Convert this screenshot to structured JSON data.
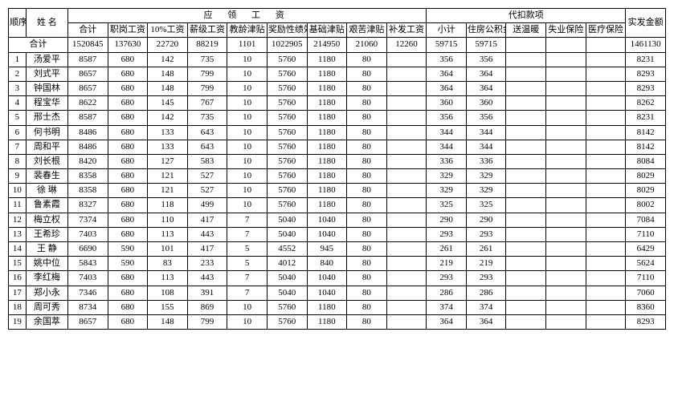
{
  "columns": {
    "seq": "顺序号",
    "name": "姓 名",
    "pay_group": "应 领 工 资",
    "deduct_group": "代扣款项",
    "net": "实发金额",
    "heji": "合计",
    "zhigang": "职岗工资",
    "pct10": "10%工资",
    "xinji": "薪级工资",
    "jiaoling": "教龄津贴",
    "jiangli": "奖励性绩效工资",
    "jichu": "基础津贴",
    "jianku": "艰苦津贴",
    "bufa": "补发工资",
    "xiaoji": "小计",
    "gongjijin": "住房公积金",
    "songnuan": "送温暖",
    "shiyebx": "失业保险",
    "yiliaobx": "医疗保险",
    "total_label": "合计"
  },
  "totals": {
    "heji": "1520845",
    "zhigang": "137630",
    "pct10": "22720",
    "xinji": "88219",
    "jiaoling": "1101",
    "jiangli": "1022905",
    "jichu": "214950",
    "jianku": "21060",
    "bufa": "12260",
    "xiaoji": "59715",
    "gongjijin": "59715",
    "songnuan": "",
    "shiyebx": "",
    "yiliaobx": "",
    "net": "1461130"
  },
  "rows": [
    {
      "seq": "1",
      "name": "汤爱平",
      "heji": "8587",
      "zhigang": "680",
      "pct10": "142",
      "xinji": "735",
      "jiaoling": "10",
      "jiangli": "5760",
      "jichu": "1180",
      "jianku": "80",
      "bufa": "",
      "xiaoji": "356",
      "gongjijin": "356",
      "songnuan": "",
      "shiyebx": "",
      "yiliaobx": "",
      "net": "8231"
    },
    {
      "seq": "2",
      "name": "刘式平",
      "heji": "8657",
      "zhigang": "680",
      "pct10": "148",
      "xinji": "799",
      "jiaoling": "10",
      "jiangli": "5760",
      "jichu": "1180",
      "jianku": "80",
      "bufa": "",
      "xiaoji": "364",
      "gongjijin": "364",
      "songnuan": "",
      "shiyebx": "",
      "yiliaobx": "",
      "net": "8293"
    },
    {
      "seq": "3",
      "name": "钟国林",
      "heji": "8657",
      "zhigang": "680",
      "pct10": "148",
      "xinji": "799",
      "jiaoling": "10",
      "jiangli": "5760",
      "jichu": "1180",
      "jianku": "80",
      "bufa": "",
      "xiaoji": "364",
      "gongjijin": "364",
      "songnuan": "",
      "shiyebx": "",
      "yiliaobx": "",
      "net": "8293"
    },
    {
      "seq": "4",
      "name": "程宝华",
      "heji": "8622",
      "zhigang": "680",
      "pct10": "145",
      "xinji": "767",
      "jiaoling": "10",
      "jiangli": "5760",
      "jichu": "1180",
      "jianku": "80",
      "bufa": "",
      "xiaoji": "360",
      "gongjijin": "360",
      "songnuan": "",
      "shiyebx": "",
      "yiliaobx": "",
      "net": "8262"
    },
    {
      "seq": "5",
      "name": "邢士杰",
      "heji": "8587",
      "zhigang": "680",
      "pct10": "142",
      "xinji": "735",
      "jiaoling": "10",
      "jiangli": "5760",
      "jichu": "1180",
      "jianku": "80",
      "bufa": "",
      "xiaoji": "356",
      "gongjijin": "356",
      "songnuan": "",
      "shiyebx": "",
      "yiliaobx": "",
      "net": "8231"
    },
    {
      "seq": "6",
      "name": "何书明",
      "heji": "8486",
      "zhigang": "680",
      "pct10": "133",
      "xinji": "643",
      "jiaoling": "10",
      "jiangli": "5760",
      "jichu": "1180",
      "jianku": "80",
      "bufa": "",
      "xiaoji": "344",
      "gongjijin": "344",
      "songnuan": "",
      "shiyebx": "",
      "yiliaobx": "",
      "net": "8142"
    },
    {
      "seq": "7",
      "name": "周和平",
      "heji": "8486",
      "zhigang": "680",
      "pct10": "133",
      "xinji": "643",
      "jiaoling": "10",
      "jiangli": "5760",
      "jichu": "1180",
      "jianku": "80",
      "bufa": "",
      "xiaoji": "344",
      "gongjijin": "344",
      "songnuan": "",
      "shiyebx": "",
      "yiliaobx": "",
      "net": "8142"
    },
    {
      "seq": "8",
      "name": "刘长根",
      "heji": "8420",
      "zhigang": "680",
      "pct10": "127",
      "xinji": "583",
      "jiaoling": "10",
      "jiangli": "5760",
      "jichu": "1180",
      "jianku": "80",
      "bufa": "",
      "xiaoji": "336",
      "gongjijin": "336",
      "songnuan": "",
      "shiyebx": "",
      "yiliaobx": "",
      "net": "8084"
    },
    {
      "seq": "9",
      "name": "裴春生",
      "heji": "8358",
      "zhigang": "680",
      "pct10": "121",
      "xinji": "527",
      "jiaoling": "10",
      "jiangli": "5760",
      "jichu": "1180",
      "jianku": "80",
      "bufa": "",
      "xiaoji": "329",
      "gongjijin": "329",
      "songnuan": "",
      "shiyebx": "",
      "yiliaobx": "",
      "net": "8029"
    },
    {
      "seq": "10",
      "name": "徐 琳",
      "heji": "8358",
      "zhigang": "680",
      "pct10": "121",
      "xinji": "527",
      "jiaoling": "10",
      "jiangli": "5760",
      "jichu": "1180",
      "jianku": "80",
      "bufa": "",
      "xiaoji": "329",
      "gongjijin": "329",
      "songnuan": "",
      "shiyebx": "",
      "yiliaobx": "",
      "net": "8029"
    },
    {
      "seq": "11",
      "name": "鲁素霞",
      "heji": "8327",
      "zhigang": "680",
      "pct10": "118",
      "xinji": "499",
      "jiaoling": "10",
      "jiangli": "5760",
      "jichu": "1180",
      "jianku": "80",
      "bufa": "",
      "xiaoji": "325",
      "gongjijin": "325",
      "songnuan": "",
      "shiyebx": "",
      "yiliaobx": "",
      "net": "8002"
    },
    {
      "seq": "12",
      "name": "梅立权",
      "heji": "7374",
      "zhigang": "680",
      "pct10": "110",
      "xinji": "417",
      "jiaoling": "7",
      "jiangli": "5040",
      "jichu": "1040",
      "jianku": "80",
      "bufa": "",
      "xiaoji": "290",
      "gongjijin": "290",
      "songnuan": "",
      "shiyebx": "",
      "yiliaobx": "",
      "net": "7084"
    },
    {
      "seq": "13",
      "name": "王希珍",
      "heji": "7403",
      "zhigang": "680",
      "pct10": "113",
      "xinji": "443",
      "jiaoling": "7",
      "jiangli": "5040",
      "jichu": "1040",
      "jianku": "80",
      "bufa": "",
      "xiaoji": "293",
      "gongjijin": "293",
      "songnuan": "",
      "shiyebx": "",
      "yiliaobx": "",
      "net": "7110"
    },
    {
      "seq": "14",
      "name": "王 静",
      "heji": "6690",
      "zhigang": "590",
      "pct10": "101",
      "xinji": "417",
      "jiaoling": "5",
      "jiangli": "4552",
      "jichu": "945",
      "jianku": "80",
      "bufa": "",
      "xiaoji": "261",
      "gongjijin": "261",
      "songnuan": "",
      "shiyebx": "",
      "yiliaobx": "",
      "net": "6429"
    },
    {
      "seq": "15",
      "name": "姚中位",
      "heji": "5843",
      "zhigang": "590",
      "pct10": "83",
      "xinji": "233",
      "jiaoling": "5",
      "jiangli": "4012",
      "jichu": "840",
      "jianku": "80",
      "bufa": "",
      "xiaoji": "219",
      "gongjijin": "219",
      "songnuan": "",
      "shiyebx": "",
      "yiliaobx": "",
      "net": "5624"
    },
    {
      "seq": "16",
      "name": "李红梅",
      "heji": "7403",
      "zhigang": "680",
      "pct10": "113",
      "xinji": "443",
      "jiaoling": "7",
      "jiangli": "5040",
      "jichu": "1040",
      "jianku": "80",
      "bufa": "",
      "xiaoji": "293",
      "gongjijin": "293",
      "songnuan": "",
      "shiyebx": "",
      "yiliaobx": "",
      "net": "7110"
    },
    {
      "seq": "17",
      "name": "郑小永",
      "heji": "7346",
      "zhigang": "680",
      "pct10": "108",
      "xinji": "391",
      "jiaoling": "7",
      "jiangli": "5040",
      "jichu": "1040",
      "jianku": "80",
      "bufa": "",
      "xiaoji": "286",
      "gongjijin": "286",
      "songnuan": "",
      "shiyebx": "",
      "yiliaobx": "",
      "net": "7060"
    },
    {
      "seq": "18",
      "name": "周可秀",
      "heji": "8734",
      "zhigang": "680",
      "pct10": "155",
      "xinji": "869",
      "jiaoling": "10",
      "jiangli": "5760",
      "jichu": "1180",
      "jianku": "80",
      "bufa": "",
      "xiaoji": "374",
      "gongjijin": "374",
      "songnuan": "",
      "shiyebx": "",
      "yiliaobx": "",
      "net": "8360"
    },
    {
      "seq": "19",
      "name": "余国萃",
      "heji": "8657",
      "zhigang": "680",
      "pct10": "148",
      "xinji": "799",
      "jiaoling": "10",
      "jiangli": "5760",
      "jichu": "1180",
      "jianku": "80",
      "bufa": "",
      "xiaoji": "364",
      "gongjijin": "364",
      "songnuan": "",
      "shiyebx": "",
      "yiliaobx": "",
      "net": "8293"
    }
  ]
}
